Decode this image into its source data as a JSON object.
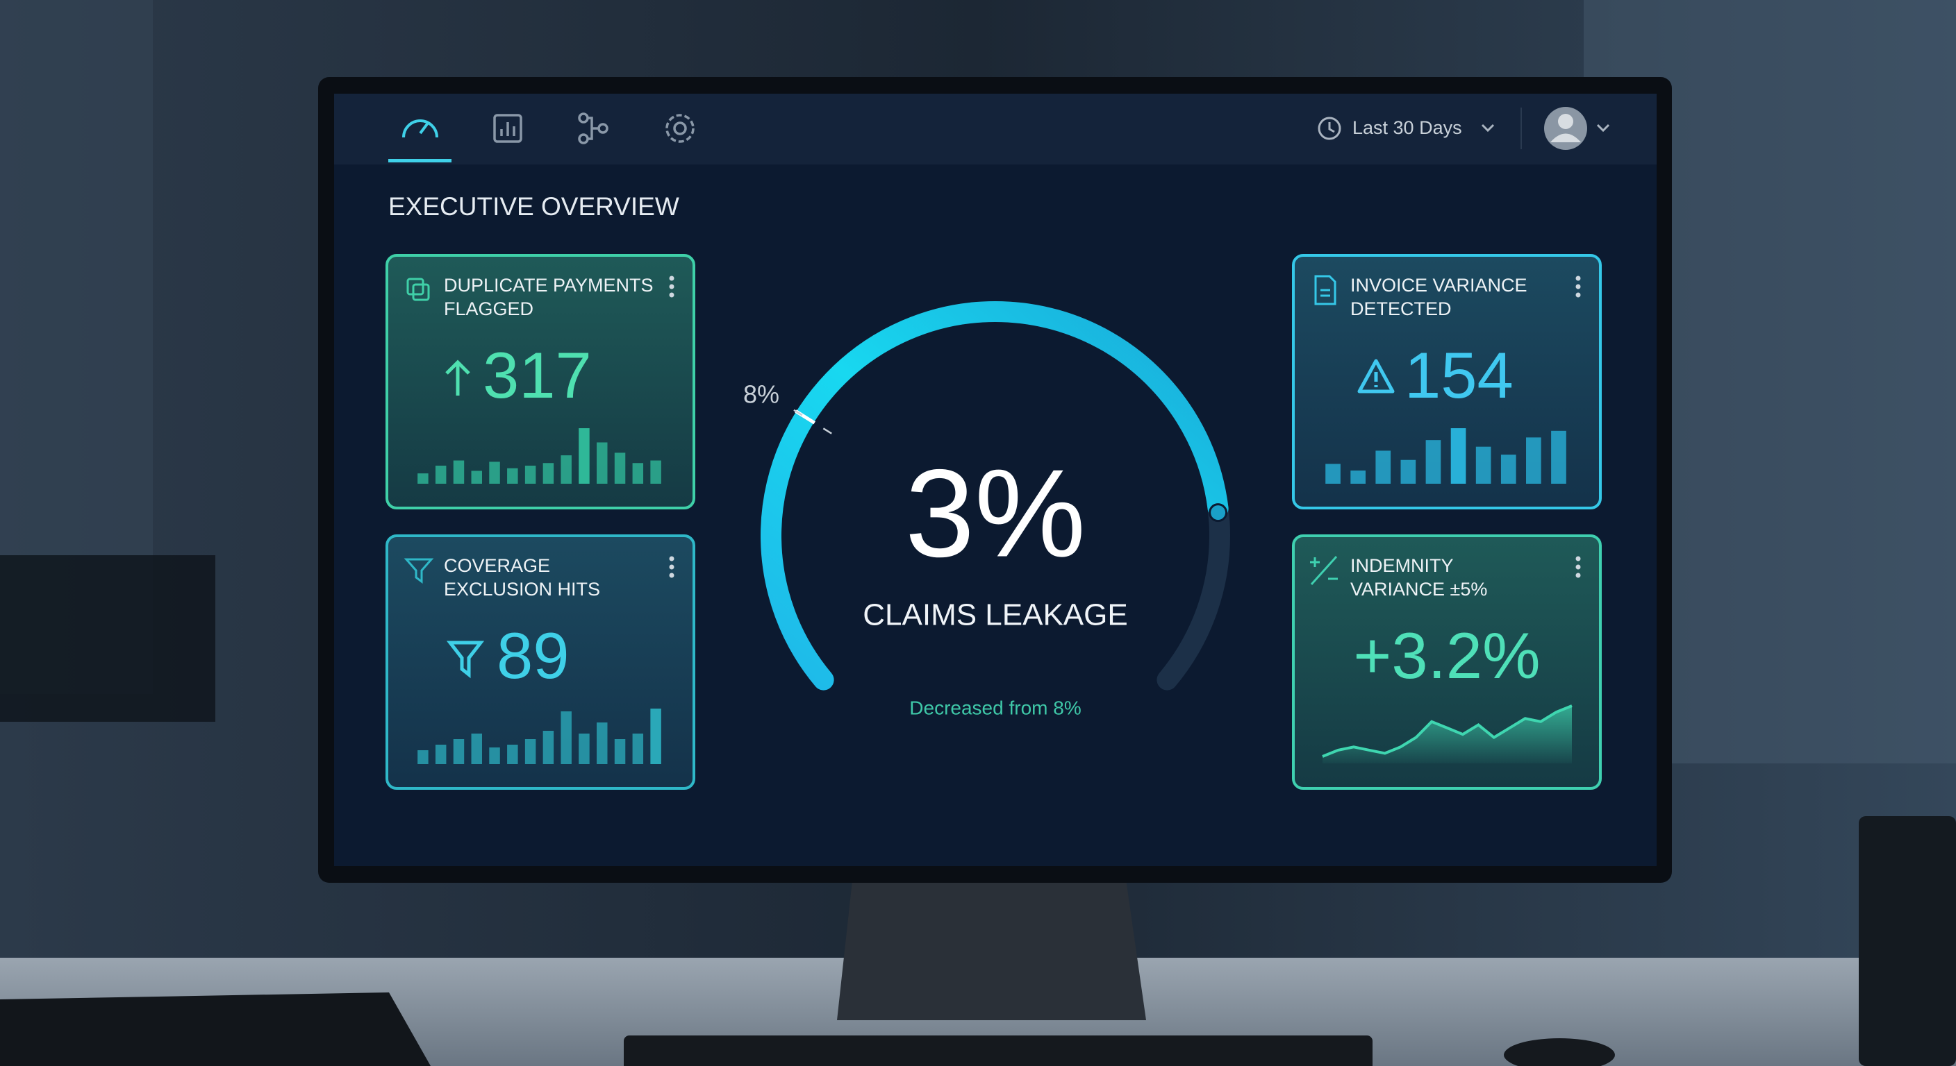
{
  "nav": {
    "date_range": "Last 30 Days"
  },
  "page_title": "EXECUTIVE OVERVIEW",
  "cards": [
    {
      "title_lines": [
        "DUPLICATE PAYMENTS",
        "FLAGGED"
      ],
      "value": "317",
      "bars": [
        8,
        14,
        18,
        10,
        17,
        12,
        14,
        16,
        22,
        43,
        32,
        24,
        16,
        18
      ]
    },
    {
      "title_lines": [
        "COVERAGE",
        "EXCLUSION HITS"
      ],
      "value": "89",
      "bars": [
        10,
        14,
        18,
        22,
        12,
        14,
        18,
        24,
        38,
        22,
        30,
        18,
        22,
        40
      ]
    },
    {
      "title_lines": [
        "INVOICE VARIANCE",
        "DETECTED"
      ],
      "value": "154",
      "bars": [
        15,
        10,
        25,
        18,
        33,
        42,
        28,
        22,
        35,
        40
      ]
    },
    {
      "title_lines": [
        "INDEMNITY",
        "VARIANCE ±5%"
      ],
      "value": "+3.2%",
      "trend": [
        3,
        5,
        6,
        5,
        4,
        6,
        9,
        14,
        12,
        10,
        13,
        9,
        12,
        15,
        14,
        17,
        19
      ]
    }
  ],
  "gauge": {
    "value": "3%",
    "label": "CLAIMS LEAKAGE",
    "marker": "8%",
    "note": "Decreased from 8%"
  }
}
